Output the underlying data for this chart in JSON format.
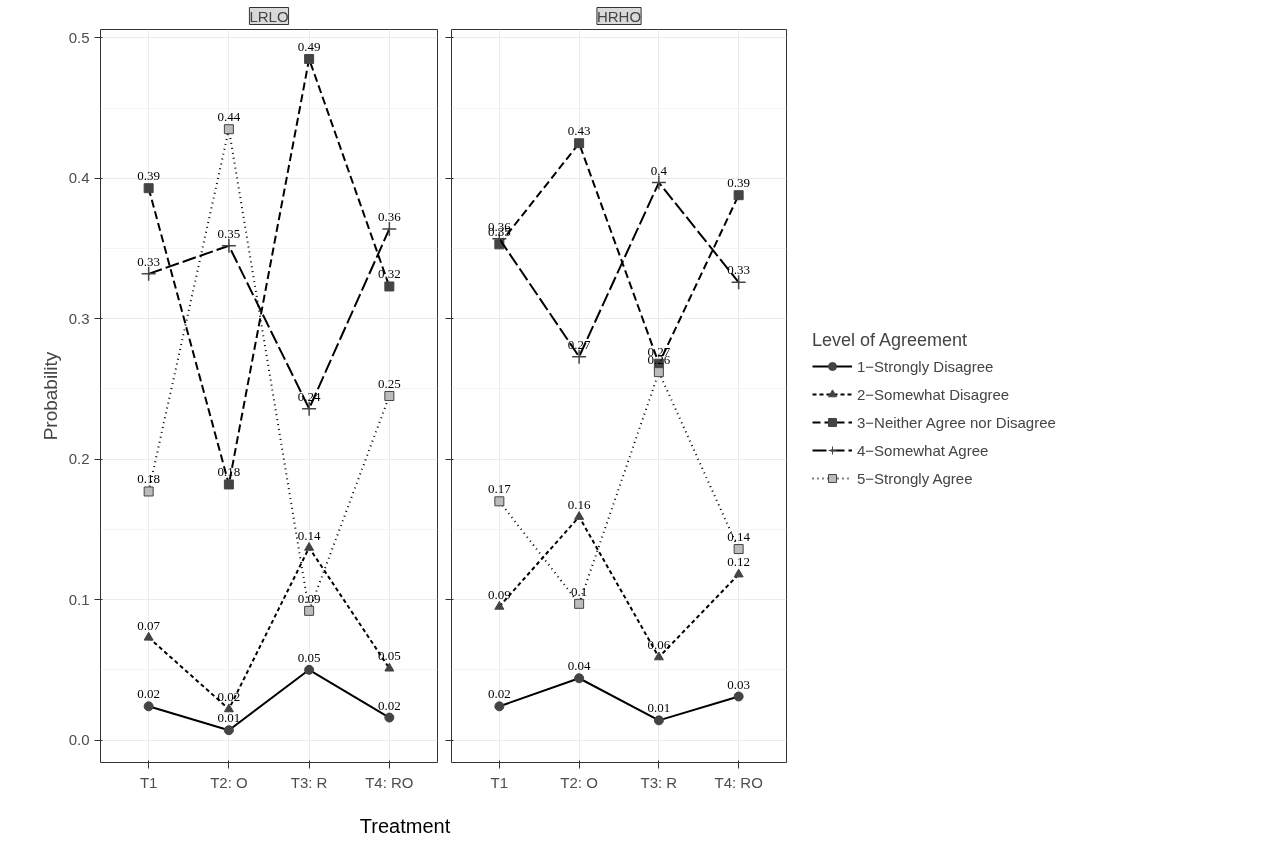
{
  "chart_data": [
    {
      "type": "line",
      "title": "LRLO",
      "ylabel": "Probability",
      "xlabel": "Treatment",
      "categories": [
        "T1",
        "T2: O",
        "T3: R",
        "T4: RO"
      ],
      "ylim": [
        -0.016,
        0.506
      ],
      "yticks": [
        {
          "value": 0,
          "label": "0.0"
        },
        0.1,
        0.2,
        0.3,
        0.4,
        0.5
      ],
      "grid": true,
      "series": [
        {
          "color": "#444444",
          "line_style": "solid",
          "marker": "circle",
          "values": [
            0.024,
            0.007,
            0.05,
            0.016
          ],
          "value_labels": [
            "0.02",
            "0.01",
            "0.05",
            "0.02"
          ]
        },
        {
          "color": "#444444",
          "line_style": "dashed",
          "marker": "triangle",
          "values": [
            0.073,
            0.022,
            0.137,
            0.051
          ],
          "value_labels": [
            "0.07",
            "0.02",
            "0.14",
            "0.05"
          ]
        },
        {
          "color": "#444444",
          "line_style": "dashed",
          "marker": "square",
          "values": [
            0.393,
            0.182,
            0.485,
            0.323
          ],
          "value_labels": [
            "0.39",
            "0.18",
            "0.49",
            "0.32"
          ]
        },
        {
          "color": "#444444",
          "line_style": "dashed",
          "marker": "cross",
          "values": [
            0.332,
            0.352,
            0.236,
            0.364
          ],
          "value_labels": [
            "0.33",
            "0.35",
            "0.24",
            "0.36"
          ]
        },
        {
          "color": "#444444",
          "line_style": "dotted",
          "marker": "square",
          "values": [
            0.177,
            0.435,
            0.092,
            0.245
          ],
          "value_labels": [
            "0.18",
            "0.44",
            "0.09",
            "0.25"
          ]
        }
      ]
    },
    {
      "type": "line",
      "title": "HRHO",
      "categories": [
        "T1",
        "T2: O",
        "T3: R",
        "T4: RO"
      ],
      "ylim": [
        -0.016,
        0.506
      ],
      "yticks": [
        0,
        0.1,
        0.2,
        0.3,
        0.4,
        0.5
      ],
      "grid": true,
      "legend": "right",
      "legend_title": "Level of Agreement",
      "tick_labels": "x",
      "series": [
        {
          "name": "1−Strongly Disagree",
          "color": "#444444",
          "line_style": "solid",
          "marker": "circle",
          "values": [
            0.024,
            0.044,
            0.014,
            0.031
          ],
          "value_labels": [
            "0.02",
            "0.04",
            "0.01",
            "0.03"
          ]
        },
        {
          "name": "2−Somewhat Disagree",
          "color": "#444444",
          "line_style": "dashed",
          "marker": "triangle",
          "values": [
            0.095,
            0.159,
            0.059,
            0.118
          ],
          "value_labels": [
            "0.09",
            "0.16",
            "0.06",
            "0.12"
          ]
        },
        {
          "name": "3−Neither Agree nor Disagree",
          "color": "#444444",
          "line_style": "dashed",
          "marker": "square",
          "values": [
            0.353,
            0.425,
            0.268,
            0.388
          ],
          "value_labels": [
            "0.35",
            "0.43",
            "0.27",
            "0.39"
          ]
        },
        {
          "name": "4−Somewhat Agree",
          "color": "#444444",
          "line_style": "dashed",
          "marker": "cross",
          "values": [
            0.357,
            0.273,
            0.397,
            0.326
          ],
          "value_labels": [
            "0.36",
            "0.27",
            "0.4",
            "0.33"
          ]
        },
        {
          "name": "5−Strongly Agree",
          "color": "#444444",
          "line_style": "dotted",
          "marker": "square",
          "values": [
            0.17,
            0.097,
            0.262,
            0.136
          ],
          "value_labels": [
            "0.17",
            "0.1",
            "0.26",
            "0.14"
          ]
        }
      ]
    }
  ]
}
